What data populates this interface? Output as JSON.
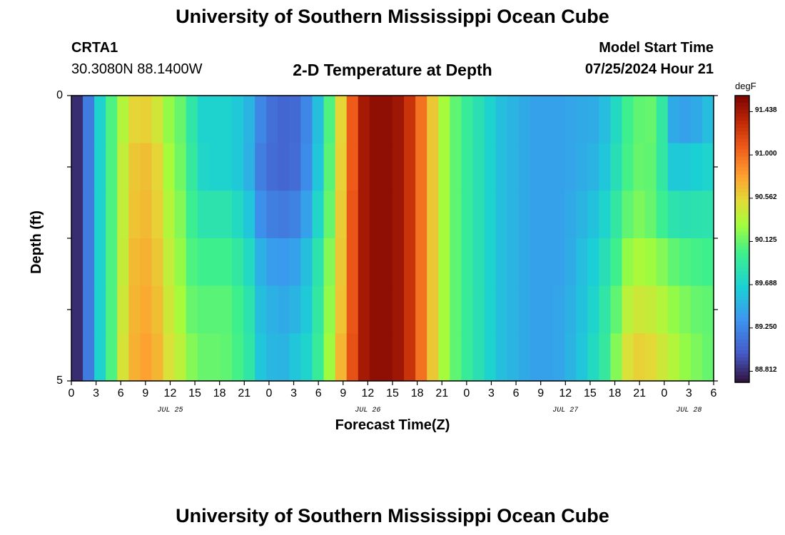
{
  "page": {
    "title": "University of Southern Mississippi Ocean Cube",
    "footer_title": "University of Southern Mississippi Ocean Cube"
  },
  "header": {
    "station": "CRTA1",
    "coords": "30.3080N  88.1400W",
    "model_label": "Model Start Time",
    "model_time": "07/25/2024 Hour 21"
  },
  "chart_data": {
    "type": "heatmap",
    "title": "2-D Temperature at Depth",
    "xlabel": "Forecast Time(Z)",
    "ylabel": "Depth (ft)",
    "colorbar_unit": "degF",
    "colorbar_ticks": [
      "91.438",
      "91.000",
      "90.562",
      "90.125",
      "89.688",
      "89.250",
      "88.812"
    ],
    "vmin": 88.7,
    "vmax": 91.6,
    "ylim": [
      0,
      5
    ],
    "y_tick_labels": [
      "0",
      "5"
    ],
    "x_tick_labels": [
      "0",
      "3",
      "6",
      "9",
      "12",
      "15",
      "18",
      "21",
      "0",
      "3",
      "6",
      "9",
      "12",
      "15",
      "18",
      "21",
      "0",
      "3",
      "6",
      "9",
      "12",
      "15",
      "18",
      "21",
      "0",
      "3",
      "6"
    ],
    "date_labels": [
      "JUL 25",
      "JUL 26",
      "JUL 27",
      "JUL 28"
    ],
    "forecast_hours": [
      0,
      3,
      6,
      9,
      12,
      15,
      18,
      21,
      24,
      27,
      30,
      33,
      36,
      39,
      42,
      45,
      48,
      51,
      54,
      57,
      60,
      63,
      66,
      69,
      72,
      75,
      78
    ],
    "depth_rows_ft": [
      0.25,
      1.0,
      2.0,
      3.0,
      4.0,
      4.75
    ],
    "temperature_degF": [
      [
        88.81,
        89.19,
        89.69,
        90.05,
        90.35,
        90.56,
        90.58,
        90.46,
        90.25,
        90.12,
        89.88,
        89.69,
        89.69,
        89.69,
        89.62,
        89.5,
        89.25,
        89.12,
        89.06,
        89.08,
        89.25,
        89.56,
        90.05,
        90.56,
        91.08,
        91.44,
        91.52,
        91.52,
        91.46,
        91.28,
        90.98,
        90.62,
        90.3,
        90.1,
        89.95,
        89.82,
        89.69,
        89.56,
        89.5,
        89.45,
        89.4,
        89.4,
        89.4,
        89.42,
        89.44,
        89.46,
        89.55,
        89.75,
        90.0,
        90.1,
        90.12,
        89.9,
        89.45,
        89.4,
        89.45,
        89.55
      ],
      [
        88.81,
        89.19,
        89.69,
        90.05,
        90.4,
        90.62,
        90.66,
        90.56,
        90.3,
        90.15,
        89.92,
        89.72,
        89.69,
        89.69,
        89.62,
        89.48,
        89.2,
        89.1,
        89.06,
        89.1,
        89.28,
        89.6,
        90.08,
        90.58,
        91.08,
        91.44,
        91.52,
        91.52,
        91.46,
        91.28,
        90.98,
        90.62,
        90.3,
        90.1,
        89.95,
        89.82,
        89.69,
        89.56,
        89.5,
        89.45,
        89.4,
        89.4,
        89.4,
        89.42,
        89.46,
        89.5,
        89.6,
        89.8,
        90.02,
        90.12,
        90.1,
        89.9,
        89.62,
        89.62,
        89.66,
        89.7
      ],
      [
        88.81,
        89.19,
        89.69,
        90.05,
        90.4,
        90.64,
        90.68,
        90.58,
        90.35,
        90.2,
        89.98,
        89.85,
        89.85,
        89.85,
        89.75,
        89.6,
        89.3,
        89.2,
        89.18,
        89.22,
        89.4,
        89.72,
        90.12,
        90.6,
        91.1,
        91.44,
        91.52,
        91.52,
        91.46,
        91.28,
        90.98,
        90.62,
        90.3,
        90.1,
        89.95,
        89.82,
        89.69,
        89.56,
        89.5,
        89.45,
        89.4,
        89.4,
        89.4,
        89.44,
        89.5,
        89.58,
        89.7,
        89.9,
        90.1,
        90.18,
        90.12,
        89.98,
        89.85,
        89.82,
        89.84,
        89.85
      ],
      [
        88.81,
        89.19,
        89.69,
        90.05,
        90.42,
        90.68,
        90.72,
        90.62,
        90.4,
        90.25,
        90.05,
        90.0,
        90.0,
        90.0,
        89.9,
        89.75,
        89.48,
        89.38,
        89.36,
        89.4,
        89.56,
        89.85,
        90.2,
        90.62,
        91.1,
        91.44,
        91.52,
        91.52,
        91.46,
        91.28,
        90.98,
        90.62,
        90.3,
        90.1,
        89.95,
        89.82,
        89.69,
        89.56,
        89.5,
        89.45,
        89.4,
        89.4,
        89.4,
        89.46,
        89.55,
        89.65,
        89.8,
        90.0,
        90.25,
        90.32,
        90.28,
        90.2,
        90.1,
        90.05,
        90.02,
        90.0
      ],
      [
        88.81,
        89.19,
        89.69,
        90.05,
        90.45,
        90.7,
        90.75,
        90.66,
        90.45,
        90.3,
        90.12,
        90.08,
        90.08,
        90.08,
        90.0,
        89.85,
        89.56,
        89.48,
        89.45,
        89.5,
        89.62,
        89.9,
        90.24,
        90.64,
        91.1,
        91.44,
        91.52,
        91.52,
        91.46,
        91.28,
        90.98,
        90.62,
        90.3,
        90.1,
        89.95,
        89.82,
        89.69,
        89.56,
        89.5,
        89.45,
        89.4,
        89.4,
        89.42,
        89.48,
        89.58,
        89.7,
        89.88,
        90.1,
        90.38,
        90.45,
        90.42,
        90.35,
        90.25,
        90.18,
        90.12,
        90.1
      ],
      [
        88.81,
        89.19,
        89.69,
        90.05,
        90.48,
        90.72,
        90.78,
        90.7,
        90.5,
        90.38,
        90.2,
        90.12,
        90.12,
        90.1,
        90.02,
        89.88,
        89.6,
        89.52,
        89.5,
        89.6,
        89.7,
        89.95,
        90.28,
        90.7,
        91.12,
        91.44,
        91.52,
        91.52,
        91.46,
        91.28,
        90.98,
        90.62,
        90.3,
        90.1,
        89.95,
        89.82,
        89.69,
        89.56,
        89.5,
        89.45,
        89.4,
        89.4,
        89.42,
        89.5,
        89.6,
        89.75,
        89.92,
        90.2,
        90.5,
        90.58,
        90.55,
        90.45,
        90.35,
        90.25,
        90.18,
        90.12
      ]
    ]
  }
}
